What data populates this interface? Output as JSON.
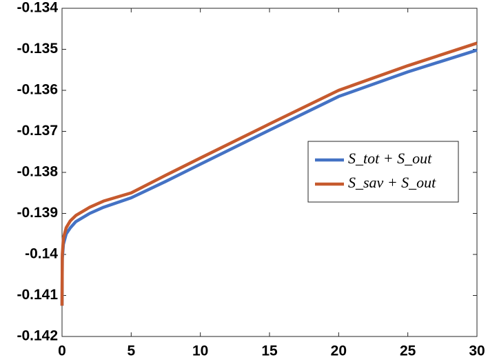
{
  "chart_data": {
    "type": "line",
    "x": [
      0,
      0.02,
      0.1,
      0.3,
      0.6,
      1,
      2,
      3,
      5,
      7.5,
      10,
      15,
      20,
      25,
      30
    ],
    "series": [
      {
        "name": "S_tot + S_out",
        "color": "#4472c4",
        "values": [
          -0.14125,
          -0.1401,
          -0.13975,
          -0.1395,
          -0.13935,
          -0.1392,
          -0.139,
          -0.13885,
          -0.13862,
          -0.13822,
          -0.1378,
          -0.13697,
          -0.13615,
          -0.13555,
          -0.13502
        ]
      },
      {
        "name": "S_sav + S_out",
        "color": "#c65a2e",
        "values": [
          -0.14125,
          -0.14,
          -0.1396,
          -0.13935,
          -0.13918,
          -0.13905,
          -0.13885,
          -0.1387,
          -0.1385,
          -0.13807,
          -0.13765,
          -0.13682,
          -0.136,
          -0.1354,
          -0.13485
        ]
      }
    ],
    "xlim": [
      0,
      30
    ],
    "xticks": [
      0,
      5,
      10,
      15,
      20,
      25,
      30
    ],
    "ylim": [
      -0.142,
      -0.134
    ],
    "yticks": [
      -0.142,
      -0.141,
      -0.14,
      -0.139,
      -0.138,
      -0.137,
      -0.136,
      -0.135,
      -0.134
    ],
    "grid": false,
    "legend": "right"
  }
}
